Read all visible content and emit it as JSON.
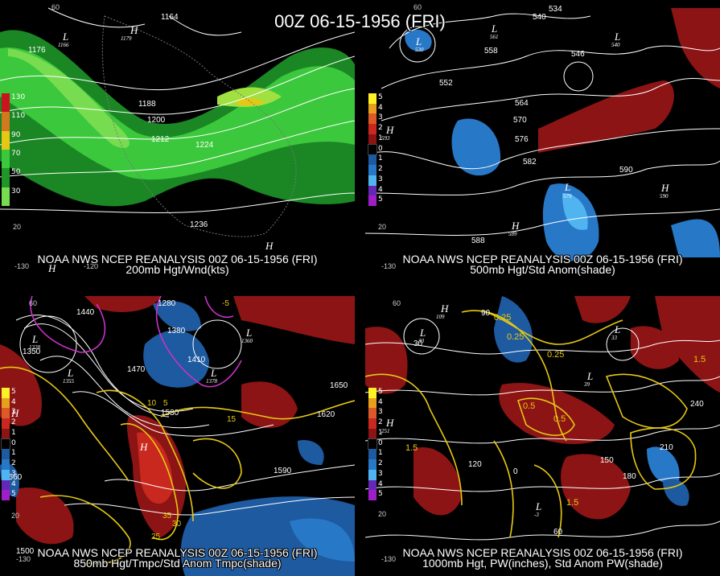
{
  "title": "00Z 06-15-1956 (FRI)",
  "panels": [
    {
      "id": "p200",
      "credit": "NOAA NWS NCEP REANALYSIS 00Z 06-15-1956 (FRI)",
      "product": "200mb Hgt/Wnd(kts)",
      "legend": [
        {
          "label": "130",
          "color": "#c8141e"
        },
        {
          "label": "110",
          "color": "#d2781e"
        },
        {
          "label": "90",
          "color": "#e6c814"
        },
        {
          "label": "70",
          "color": "#3cc83c"
        },
        {
          "label": "50",
          "color": "#1e9628"
        },
        {
          "label": "30",
          "color": "#78dc50"
        }
      ],
      "contours": [
        "1164",
        "1176",
        "1188",
        "1200",
        "1212",
        "1224",
        "1236"
      ],
      "centers": [
        {
          "text": "L",
          "sub": "1166"
        },
        {
          "text": "H",
          "sub": "1179"
        },
        {
          "text": "H",
          "sub": ""
        },
        {
          "text": "H",
          "sub": ""
        }
      ],
      "lon_labels": [
        "-130",
        "-120"
      ],
      "lat_labels": [
        "60",
        "20"
      ]
    },
    {
      "id": "p500",
      "credit": "NOAA NWS NCEP REANALYSIS 00Z 06-15-1956 (FRI)",
      "product": "500mb Hgt/Std Anom(shade)",
      "legend": [
        {
          "label": "5",
          "color": "#fff028"
        },
        {
          "label": "4",
          "color": "#e6a01e"
        },
        {
          "label": "3",
          "color": "#dc5a28"
        },
        {
          "label": "2",
          "color": "#c8281e"
        },
        {
          "label": "1",
          "color": "#8c1414"
        },
        {
          "label": "0",
          "color": "#000000"
        },
        {
          "label": "1",
          "color": "#1e5aa0"
        },
        {
          "label": "2",
          "color": "#2878c8"
        },
        {
          "label": "3",
          "color": "#50b4f0"
        },
        {
          "label": "4",
          "color": "#6428b4"
        },
        {
          "label": "5",
          "color": "#a01ec8"
        }
      ],
      "contours": [
        "534",
        "540",
        "546",
        "552",
        "558",
        "564",
        "570",
        "576",
        "582",
        "588",
        "590"
      ],
      "centers": [
        {
          "text": "L",
          "sub": "530"
        },
        {
          "text": "L",
          "sub": "540"
        },
        {
          "text": "L",
          "sub": "561"
        },
        {
          "text": "L",
          "sub": "579"
        },
        {
          "text": "H",
          "sub": "593"
        },
        {
          "text": "H",
          "sub": "589"
        },
        {
          "text": "H",
          "sub": "590"
        }
      ],
      "lon_labels": [
        "-130"
      ],
      "lat_labels": [
        "60",
        "20"
      ]
    },
    {
      "id": "p850",
      "credit": "NOAA NWS NCEP REANALYSIS 00Z 06-15-1956 (FRI)",
      "product": "850mb Hgt/Tmpc/Std Anom Tmpc(shade)",
      "legend": [
        {
          "label": "5",
          "color": "#fff028"
        },
        {
          "label": "4",
          "color": "#e6a01e"
        },
        {
          "label": "3",
          "color": "#dc5a28"
        },
        {
          "label": "2",
          "color": "#c8281e"
        },
        {
          "label": "1",
          "color": "#8c1414"
        },
        {
          "label": "0",
          "color": "#000000"
        },
        {
          "label": "1",
          "color": "#1e5aa0"
        },
        {
          "label": "2",
          "color": "#2878c8"
        },
        {
          "label": "3",
          "color": "#50b4f0"
        },
        {
          "label": "4",
          "color": "#6428b4"
        },
        {
          "label": "5",
          "color": "#a01ec8"
        }
      ],
      "contours": [
        "1280",
        "1350",
        "1380",
        "1410",
        "1440",
        "1470",
        "1530",
        "1560",
        "1590",
        "1620",
        "1650",
        "1500"
      ],
      "temps": [
        "5",
        "10",
        "15",
        "25",
        "30",
        "35",
        "-5"
      ],
      "centers": [
        {
          "text": "L",
          "sub": "1328"
        },
        {
          "text": "L",
          "sub": "1360"
        },
        {
          "text": "L",
          "sub": "1355"
        },
        {
          "text": "L",
          "sub": "1378"
        },
        {
          "text": "H",
          "sub": ""
        },
        {
          "text": "H",
          "sub": ""
        }
      ],
      "lon_labels": [
        "-130"
      ],
      "lat_labels": [
        "60",
        "20"
      ]
    },
    {
      "id": "p1000",
      "credit": "NOAA NWS NCEP REANALYSIS 00Z 06-15-1956 (FRI)",
      "product": "1000mb Hgt, PW(inches), Std Anom PW(shade)",
      "legend": [
        {
          "label": "5",
          "color": "#fff028"
        },
        {
          "label": "4",
          "color": "#e6a01e"
        },
        {
          "label": "3",
          "color": "#dc5a28"
        },
        {
          "label": "2",
          "color": "#c8281e"
        },
        {
          "label": "1",
          "color": "#8c1414"
        },
        {
          "label": "0",
          "color": "#000000"
        },
        {
          "label": "1",
          "color": "#1e5aa0"
        },
        {
          "label": "2",
          "color": "#2878c8"
        },
        {
          "label": "3",
          "color": "#50b4f0"
        },
        {
          "label": "4",
          "color": "#6428b4"
        },
        {
          "label": "5",
          "color": "#a01ec8"
        }
      ],
      "contours": [
        "0",
        "30",
        "60",
        "90",
        "120",
        "150",
        "180",
        "210",
        "240"
      ],
      "pw": [
        "0.25",
        "0.5",
        "1.5"
      ],
      "centers": [
        {
          "text": "H",
          "sub": "109"
        },
        {
          "text": "L",
          "sub": "30"
        },
        {
          "text": "L",
          "sub": "33"
        },
        {
          "text": "L",
          "sub": "39"
        },
        {
          "text": "L",
          "sub": "-3"
        },
        {
          "text": "H",
          "sub": "251"
        }
      ],
      "lon_labels": [
        "-130"
      ],
      "lat_labels": [
        "60",
        "20"
      ]
    }
  ]
}
